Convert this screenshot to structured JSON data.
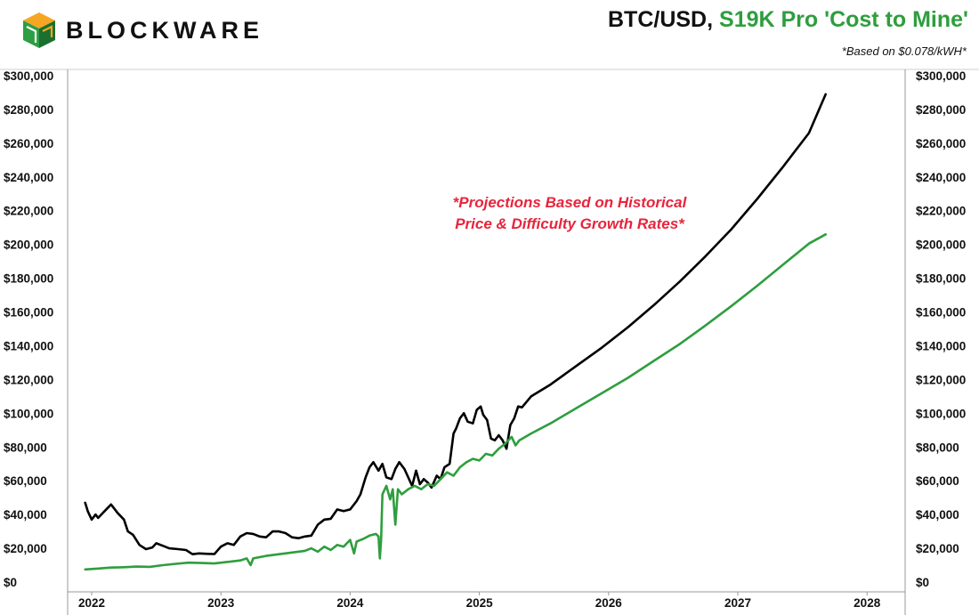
{
  "brand": {
    "name": "BLOCKWARE",
    "logo_icon": "stacked-cubes-logo",
    "logo_colors": [
      "#f5a623",
      "#2e9e44",
      "#1b6f2f"
    ]
  },
  "header": {
    "title_part1": "BTC/USD",
    "title_separator": ",",
    "title_part2": "S19K Pro 'Cost to Mine'",
    "subtitle": "*Based on $0.078/kWH*"
  },
  "colors": {
    "price_line": "#000000",
    "cost_line": "#2e9e3e",
    "annotation": "#e8243c",
    "title_green": "#2e9e3e"
  },
  "chart_data": {
    "type": "line",
    "title": "BTC/USD, S19K Pro 'Cost to Mine'",
    "subtitle": "*Based on $0.078/kWH*",
    "xlabel": "",
    "ylabel": "",
    "xlim": [
      2022.0,
      2028.5
    ],
    "ylim": [
      0,
      300000
    ],
    "y_ticks": [
      0,
      20000,
      40000,
      60000,
      80000,
      100000,
      120000,
      140000,
      160000,
      180000,
      200000,
      220000,
      240000,
      260000,
      280000,
      300000
    ],
    "y_tick_labels": [
      "$0",
      "$20,000",
      "$40,000",
      "$60,000",
      "$80,000",
      "$100,000",
      "$120,000",
      "$140,000",
      "$160,000",
      "$180,000",
      "$200,000",
      "$220,000",
      "$240,000",
      "$260,000",
      "$280,000",
      "$300,000"
    ],
    "x_ticks": [
      2022.05,
      2023.05,
      2024.05,
      2025.05,
      2026.05,
      2027.05,
      2028.05
    ],
    "x_tick_labels": [
      "2022",
      "2023",
      "2024",
      "2025",
      "2026",
      "2027",
      "2028"
    ],
    "grid": false,
    "annotation": "*Projections Based on Historical Price & Difficulty Growth Rates*",
    "annotation_lines": [
      "*Projections Based on Historical",
      "Price & Difficulty Growth Rates*"
    ],
    "series": [
      {
        "key": "price",
        "values": [
          [
            2022.0,
            47000
          ],
          [
            2022.02,
            42000
          ],
          [
            2022.05,
            37000
          ],
          [
            2022.08,
            40000
          ],
          [
            2022.1,
            38000
          ],
          [
            2022.15,
            42000
          ],
          [
            2022.2,
            46000
          ],
          [
            2022.25,
            41000
          ],
          [
            2022.3,
            37000
          ],
          [
            2022.33,
            30000
          ],
          [
            2022.37,
            28000
          ],
          [
            2022.42,
            22000
          ],
          [
            2022.47,
            19500
          ],
          [
            2022.52,
            20500
          ],
          [
            2022.55,
            23000
          ],
          [
            2022.6,
            21500
          ],
          [
            2022.65,
            20000
          ],
          [
            2022.72,
            19500
          ],
          [
            2022.78,
            19000
          ],
          [
            2022.83,
            16500
          ],
          [
            2022.88,
            17000
          ],
          [
            2022.95,
            16700
          ],
          [
            2023.0,
            16600
          ],
          [
            2023.05,
            21000
          ],
          [
            2023.1,
            23000
          ],
          [
            2023.15,
            22000
          ],
          [
            2023.2,
            27000
          ],
          [
            2023.25,
            29000
          ],
          [
            2023.3,
            28500
          ],
          [
            2023.35,
            27000
          ],
          [
            2023.4,
            26500
          ],
          [
            2023.45,
            30000
          ],
          [
            2023.5,
            30000
          ],
          [
            2023.55,
            29000
          ],
          [
            2023.6,
            26500
          ],
          [
            2023.65,
            26000
          ],
          [
            2023.7,
            27000
          ],
          [
            2023.75,
            27500
          ],
          [
            2023.8,
            34000
          ],
          [
            2023.85,
            37000
          ],
          [
            2023.9,
            37500
          ],
          [
            2023.95,
            43000
          ],
          [
            2024.0,
            42000
          ],
          [
            2024.05,
            43000
          ],
          [
            2024.1,
            48000
          ],
          [
            2024.13,
            52000
          ],
          [
            2024.17,
            62000
          ],
          [
            2024.2,
            68000
          ],
          [
            2024.23,
            71000
          ],
          [
            2024.27,
            66000
          ],
          [
            2024.3,
            70000
          ],
          [
            2024.33,
            62000
          ],
          [
            2024.37,
            61000
          ],
          [
            2024.4,
            67000
          ],
          [
            2024.43,
            71000
          ],
          [
            2024.47,
            67000
          ],
          [
            2024.5,
            62000
          ],
          [
            2024.53,
            57000
          ],
          [
            2024.56,
            66000
          ],
          [
            2024.59,
            58000
          ],
          [
            2024.62,
            61000
          ],
          [
            2024.65,
            59000
          ],
          [
            2024.68,
            56000
          ],
          [
            2024.72,
            63000
          ],
          [
            2024.75,
            61000
          ],
          [
            2024.78,
            68000
          ],
          [
            2024.82,
            70000
          ],
          [
            2024.85,
            88000
          ],
          [
            2024.87,
            91000
          ],
          [
            2024.9,
            97000
          ],
          [
            2024.93,
            100000
          ],
          [
            2024.96,
            95000
          ],
          [
            2025.0,
            94000
          ],
          [
            2025.03,
            102000
          ],
          [
            2025.06,
            104000
          ],
          [
            2025.08,
            99000
          ],
          [
            2025.11,
            96000
          ],
          [
            2025.14,
            85000
          ],
          [
            2025.17,
            84000
          ],
          [
            2025.2,
            87000
          ],
          [
            2025.23,
            84000
          ],
          [
            2025.26,
            79000
          ],
          [
            2025.29,
            93000
          ],
          [
            2025.32,
            97000
          ],
          [
            2025.35,
            104000
          ],
          [
            2025.38,
            103500
          ],
          [
            2025.45,
            110000
          ],
          [
            2025.6,
            117000
          ],
          [
            2025.8,
            128000
          ],
          [
            2026.0,
            139000
          ],
          [
            2026.2,
            151000
          ],
          [
            2026.4,
            164000
          ],
          [
            2026.6,
            178000
          ],
          [
            2026.8,
            193000
          ],
          [
            2027.0,
            209000
          ],
          [
            2027.2,
            227000
          ],
          [
            2027.4,
            246000
          ],
          [
            2027.6,
            266000
          ],
          [
            2027.73,
            289000
          ]
        ]
      },
      {
        "key": "cost",
        "values": [
          [
            2022.0,
            7500
          ],
          [
            2022.1,
            8000
          ],
          [
            2022.2,
            8600
          ],
          [
            2022.3,
            8800
          ],
          [
            2022.4,
            9200
          ],
          [
            2022.5,
            9000
          ],
          [
            2022.6,
            10000
          ],
          [
            2022.7,
            10800
          ],
          [
            2022.8,
            11500
          ],
          [
            2022.9,
            11300
          ],
          [
            2023.0,
            11000
          ],
          [
            2023.1,
            11900
          ],
          [
            2023.2,
            12800
          ],
          [
            2023.25,
            14000
          ],
          [
            2023.28,
            10000
          ],
          [
            2023.3,
            14000
          ],
          [
            2023.4,
            15500
          ],
          [
            2023.5,
            16500
          ],
          [
            2023.6,
            17500
          ],
          [
            2023.7,
            18500
          ],
          [
            2023.75,
            20000
          ],
          [
            2023.8,
            18000
          ],
          [
            2023.85,
            21000
          ],
          [
            2023.9,
            19000
          ],
          [
            2023.95,
            22000
          ],
          [
            2024.0,
            21000
          ],
          [
            2024.05,
            25000
          ],
          [
            2024.08,
            17000
          ],
          [
            2024.1,
            24000
          ],
          [
            2024.15,
            25500
          ],
          [
            2024.2,
            27500
          ],
          [
            2024.25,
            28500
          ],
          [
            2024.27,
            27000
          ],
          [
            2024.28,
            14000
          ],
          [
            2024.29,
            25000
          ],
          [
            2024.3,
            52000
          ],
          [
            2024.33,
            57000
          ],
          [
            2024.36,
            49000
          ],
          [
            2024.38,
            55000
          ],
          [
            2024.4,
            34000
          ],
          [
            2024.42,
            55000
          ],
          [
            2024.45,
            52000
          ],
          [
            2024.5,
            55000
          ],
          [
            2024.55,
            57000
          ],
          [
            2024.6,
            55000
          ],
          [
            2024.65,
            58000
          ],
          [
            2024.7,
            57000
          ],
          [
            2024.75,
            61000
          ],
          [
            2024.8,
            65000
          ],
          [
            2024.85,
            63000
          ],
          [
            2024.9,
            68000
          ],
          [
            2024.95,
            71000
          ],
          [
            2025.0,
            73000
          ],
          [
            2025.05,
            72000
          ],
          [
            2025.1,
            76000
          ],
          [
            2025.15,
            75000
          ],
          [
            2025.2,
            79000
          ],
          [
            2025.25,
            82000
          ],
          [
            2025.3,
            86000
          ],
          [
            2025.33,
            81000
          ],
          [
            2025.36,
            84000
          ],
          [
            2025.45,
            88000
          ],
          [
            2025.6,
            94000
          ],
          [
            2025.8,
            103000
          ],
          [
            2026.0,
            112000
          ],
          [
            2026.2,
            121000
          ],
          [
            2026.4,
            131000
          ],
          [
            2026.6,
            141000
          ],
          [
            2026.8,
            152000
          ],
          [
            2027.0,
            163500
          ],
          [
            2027.2,
            175500
          ],
          [
            2027.4,
            188000
          ],
          [
            2027.6,
            200500
          ],
          [
            2027.73,
            206000
          ]
        ]
      }
    ]
  }
}
